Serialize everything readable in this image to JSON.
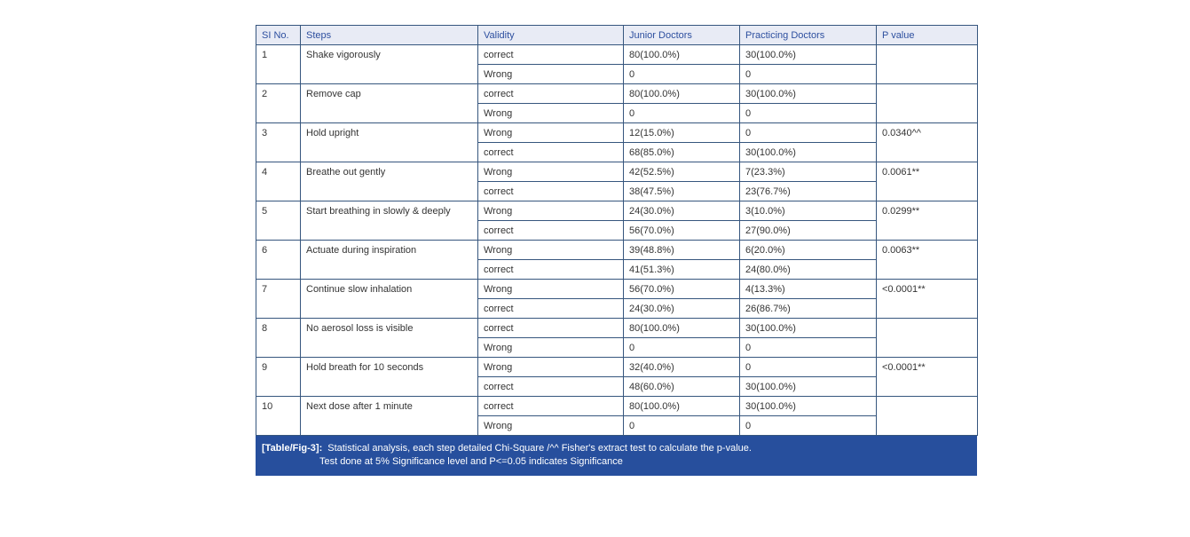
{
  "colors": {
    "border": "#36567e",
    "header-bg": "#e8ebf5",
    "header-text": "#2d4f9f",
    "body-text": "#333333",
    "caption-bg": "#274f9d",
    "caption-text": "#ffffff"
  },
  "table": {
    "headers": [
      "SI No.",
      "Steps",
      "Validity",
      "Junior Doctors",
      "Practicing Doctors",
      "P value"
    ],
    "rows": [
      {
        "si": "1",
        "step": "Shake vigorously",
        "p": "",
        "sub": [
          {
            "validity": "correct",
            "junior": "80(100.0%)",
            "practicing": "30(100.0%)"
          },
          {
            "validity": "Wrong",
            "junior": "0",
            "practicing": "0"
          }
        ]
      },
      {
        "si": "2",
        "step": "Remove cap",
        "p": "",
        "sub": [
          {
            "validity": "correct",
            "junior": "80(100.0%)",
            "practicing": "30(100.0%)"
          },
          {
            "validity": "Wrong",
            "junior": "0",
            "practicing": "0"
          }
        ]
      },
      {
        "si": "3",
        "step": "Hold upright",
        "p": "0.0340^^",
        "sub": [
          {
            "validity": "Wrong",
            "junior": "12(15.0%)",
            "practicing": "0"
          },
          {
            "validity": "correct",
            "junior": "68(85.0%)",
            "practicing": "30(100.0%)"
          }
        ]
      },
      {
        "si": "4",
        "step": "Breathe out gently",
        "p": "0.0061**",
        "sub": [
          {
            "validity": "Wrong",
            "junior": "42(52.5%)",
            "practicing": "7(23.3%)"
          },
          {
            "validity": "correct",
            "junior": "38(47.5%)",
            "practicing": "23(76.7%)"
          }
        ]
      },
      {
        "si": "5",
        "step": "Start breathing in slowly & deeply",
        "p": "0.0299**",
        "sub": [
          {
            "validity": "Wrong",
            "junior": "24(30.0%)",
            "practicing": "3(10.0%)"
          },
          {
            "validity": "correct",
            "junior": "56(70.0%)",
            "practicing": "27(90.0%)"
          }
        ]
      },
      {
        "si": "6",
        "step": "Actuate during inspiration",
        "p": "0.0063**",
        "sub": [
          {
            "validity": "Wrong",
            "junior": "39(48.8%)",
            "practicing": "6(20.0%)"
          },
          {
            "validity": "correct",
            "junior": "41(51.3%)",
            "practicing": "24(80.0%)"
          }
        ]
      },
      {
        "si": "7",
        "step": "Continue slow inhalation",
        "p": "<0.0001**",
        "sub": [
          {
            "validity": "Wrong",
            "junior": "56(70.0%)",
            "practicing": "4(13.3%)"
          },
          {
            "validity": "correct",
            "junior": "24(30.0%)",
            "practicing": "26(86.7%)"
          }
        ]
      },
      {
        "si": "8",
        "step": "No aerosol loss is visible",
        "p": "",
        "sub": [
          {
            "validity": "correct",
            "junior": "80(100.0%)",
            "practicing": "30(100.0%)"
          },
          {
            "validity": "Wrong",
            "junior": "0",
            "practicing": "0"
          }
        ]
      },
      {
        "si": "9",
        "step": "Hold breath for 10 seconds",
        "p": "<0.0001**",
        "sub": [
          {
            "validity": "Wrong",
            "junior": "32(40.0%)",
            "practicing": "0"
          },
          {
            "validity": "correct",
            "junior": "48(60.0%)",
            "practicing": "30(100.0%)"
          }
        ]
      },
      {
        "si": "10",
        "step": "Next dose after 1 minute",
        "p": "",
        "sub": [
          {
            "validity": "correct",
            "junior": "80(100.0%)",
            "practicing": "30(100.0%)"
          },
          {
            "validity": "Wrong",
            "junior": "0",
            "practicing": "0"
          }
        ]
      }
    ],
    "caption": {
      "label": "[Table/Fig-3]:",
      "line1": "Statistical analysis, each step detailed Chi-Square /^^ Fisher's extract test to calculate the p-value.",
      "line2": "Test done at 5% Significance level and P<=0.05 indicates Significance"
    }
  }
}
